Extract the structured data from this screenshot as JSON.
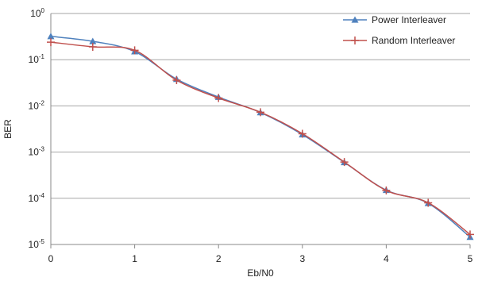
{
  "chart_data": {
    "type": "line",
    "title": "",
    "xlabel": "Eb/N0",
    "ylabel": "BER",
    "xlim": [
      0,
      5
    ],
    "ylim": [
      1e-05,
      1
    ],
    "yscale": "log",
    "x_ticks": [
      "0",
      "1",
      "2",
      "3",
      "4",
      "5"
    ],
    "y_ticks": [
      {
        "base": "10",
        "exp": "0"
      },
      {
        "base": "10",
        "exp": "-1"
      },
      {
        "base": "10",
        "exp": "-2"
      },
      {
        "base": "10",
        "exp": "-3"
      },
      {
        "base": "10",
        "exp": "-4"
      },
      {
        "base": "10",
        "exp": "-5"
      }
    ],
    "grid": "horizontal",
    "legend_position": "top-right",
    "x": [
      0,
      0.5,
      1,
      1.5,
      2,
      2.5,
      3,
      3.5,
      4,
      4.5,
      5
    ],
    "series": [
      {
        "name": "Power Interleaver",
        "color": "#4f81bd",
        "marker": "triangle",
        "values": [
          0.32,
          0.25,
          0.15,
          0.038,
          0.0155,
          0.0072,
          0.0024,
          0.0006,
          0.00015,
          7.8e-05,
          1.45e-05
        ]
      },
      {
        "name": "Random Interleaver",
        "color": "#c0504d",
        "marker": "plus",
        "values": [
          0.24,
          0.19,
          0.16,
          0.036,
          0.0148,
          0.0073,
          0.0025,
          0.00061,
          0.000148,
          8e-05,
          1.65e-05
        ]
      }
    ]
  }
}
